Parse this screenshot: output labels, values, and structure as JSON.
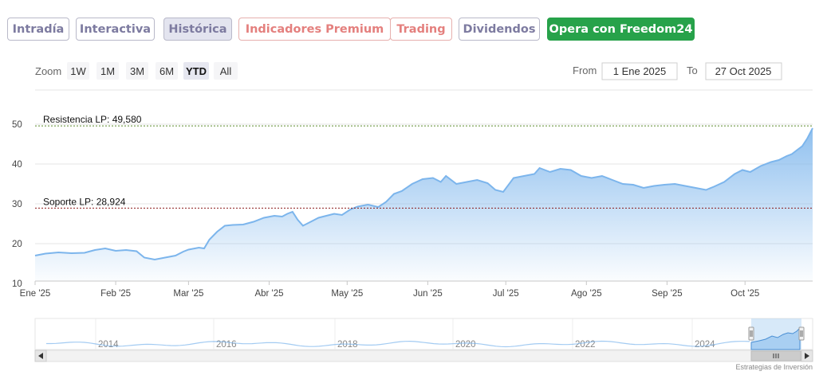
{
  "tabs": [
    {
      "label": "Intradía"
    },
    {
      "label": "Interactiva"
    },
    {
      "label": "Histórica"
    },
    {
      "label": "Indicadores Premium"
    },
    {
      "label": "Trading"
    },
    {
      "label": "Dividendos"
    },
    {
      "label": "Opera con Freedom24"
    }
  ],
  "range_selector": {
    "zoom_label": "Zoom",
    "buttons": [
      "1W",
      "1M",
      "3M",
      "6M",
      "YTD",
      "All"
    ],
    "selected": "YTD",
    "from_label": "From",
    "from_value": "1 Ene 2025",
    "to_label": "To",
    "to_value": "27 Oct 2025"
  },
  "colors": {
    "line": "#7cb5ec",
    "resistance": "#5a8a2a",
    "support": "#8b1a1a",
    "active_tab_bg": "#e3e4ef",
    "cta_green": "#27a24a"
  },
  "chart_data": {
    "type": "area",
    "x_ticks": [
      "Ene '25",
      "Feb '25",
      "Mar '25",
      "Abr '25",
      "May '25",
      "Jun '25",
      "Jul '25",
      "Ago '25",
      "Sep '25",
      "Oct '25"
    ],
    "y_ticks": [
      "10",
      "20",
      "30",
      "40",
      "50"
    ],
    "ylim": [
      10,
      50
    ],
    "xlim": [
      "2025-01-01",
      "2025-10-27"
    ],
    "grid": true,
    "series": [
      {
        "points": [
          [
            "2025-01-01",
            17.0
          ],
          [
            "2025-01-05",
            17.5
          ],
          [
            "2025-01-10",
            17.8
          ],
          [
            "2025-01-15",
            17.6
          ],
          [
            "2025-01-20",
            17.7
          ],
          [
            "2025-01-24",
            18.4
          ],
          [
            "2025-01-28",
            18.8
          ],
          [
            "2025-02-01",
            18.2
          ],
          [
            "2025-02-05",
            18.4
          ],
          [
            "2025-02-09",
            18.1
          ],
          [
            "2025-02-12",
            16.5
          ],
          [
            "2025-02-16",
            16.0
          ],
          [
            "2025-02-20",
            16.5
          ],
          [
            "2025-02-24",
            17.0
          ],
          [
            "2025-02-27",
            18.0
          ],
          [
            "2025-03-01",
            18.5
          ],
          [
            "2025-03-05",
            19.0
          ],
          [
            "2025-03-07",
            18.8
          ],
          [
            "2025-03-09",
            21.0
          ],
          [
            "2025-03-12",
            23.0
          ],
          [
            "2025-03-15",
            24.5
          ],
          [
            "2025-03-18",
            24.7
          ],
          [
            "2025-03-22",
            24.8
          ],
          [
            "2025-03-26",
            25.5
          ],
          [
            "2025-03-30",
            26.5
          ],
          [
            "2025-04-03",
            27.0
          ],
          [
            "2025-04-06",
            26.8
          ],
          [
            "2025-04-08",
            27.5
          ],
          [
            "2025-04-10",
            28.0
          ],
          [
            "2025-04-12",
            26.0
          ],
          [
            "2025-04-14",
            24.5
          ],
          [
            "2025-04-17",
            25.5
          ],
          [
            "2025-04-20",
            26.5
          ],
          [
            "2025-04-23",
            27.0
          ],
          [
            "2025-04-26",
            27.5
          ],
          [
            "2025-04-29",
            27.2
          ],
          [
            "2025-05-02",
            28.5
          ],
          [
            "2025-05-05",
            29.3
          ],
          [
            "2025-05-09",
            29.8
          ],
          [
            "2025-05-13",
            29.2
          ],
          [
            "2025-05-16",
            30.5
          ],
          [
            "2025-05-19",
            32.5
          ],
          [
            "2025-05-22",
            33.2
          ],
          [
            "2025-05-26",
            35.0
          ],
          [
            "2025-05-30",
            36.2
          ],
          [
            "2025-06-03",
            36.5
          ],
          [
            "2025-06-06",
            35.5
          ],
          [
            "2025-06-08",
            37.0
          ],
          [
            "2025-06-12",
            35.0
          ],
          [
            "2025-06-16",
            35.5
          ],
          [
            "2025-06-20",
            36.0
          ],
          [
            "2025-06-24",
            35.2
          ],
          [
            "2025-06-27",
            33.5
          ],
          [
            "2025-06-30",
            33.0
          ],
          [
            "2025-07-04",
            36.5
          ],
          [
            "2025-07-08",
            37.0
          ],
          [
            "2025-07-12",
            37.5
          ],
          [
            "2025-07-14",
            39.0
          ],
          [
            "2025-07-18",
            38.0
          ],
          [
            "2025-07-22",
            38.8
          ],
          [
            "2025-07-26",
            38.5
          ],
          [
            "2025-07-30",
            37.0
          ],
          [
            "2025-08-03",
            36.5
          ],
          [
            "2025-08-07",
            37.0
          ],
          [
            "2025-08-11",
            36.0
          ],
          [
            "2025-08-15",
            35.0
          ],
          [
            "2025-08-19",
            34.8
          ],
          [
            "2025-08-23",
            34.0
          ],
          [
            "2025-08-27",
            34.5
          ],
          [
            "2025-08-31",
            34.8
          ],
          [
            "2025-09-04",
            35.0
          ],
          [
            "2025-09-08",
            34.5
          ],
          [
            "2025-09-12",
            34.0
          ],
          [
            "2025-09-16",
            33.5
          ],
          [
            "2025-09-19",
            34.3
          ],
          [
            "2025-09-23",
            35.5
          ],
          [
            "2025-09-27",
            37.5
          ],
          [
            "2025-09-30",
            38.5
          ],
          [
            "2025-10-03",
            38.0
          ],
          [
            "2025-10-07",
            39.5
          ],
          [
            "2025-10-11",
            40.5
          ],
          [
            "2025-10-14",
            41.0
          ],
          [
            "2025-10-17",
            42.0
          ],
          [
            "2025-10-19",
            42.5
          ],
          [
            "2025-10-21",
            43.5
          ],
          [
            "2025-10-23",
            44.5
          ],
          [
            "2025-10-25",
            46.5
          ],
          [
            "2025-10-27",
            49.0
          ]
        ]
      }
    ],
    "annotations": [
      {
        "label": "Resistencia LP: 49,580",
        "value": 49.58
      },
      {
        "label": "Soporte LP: 28,924",
        "value": 28.924
      }
    ]
  },
  "navigator": {
    "years": [
      "2014",
      "2016",
      "2018",
      "2020",
      "2022",
      "2024"
    ],
    "credit": "Estrategias de Inversión"
  }
}
